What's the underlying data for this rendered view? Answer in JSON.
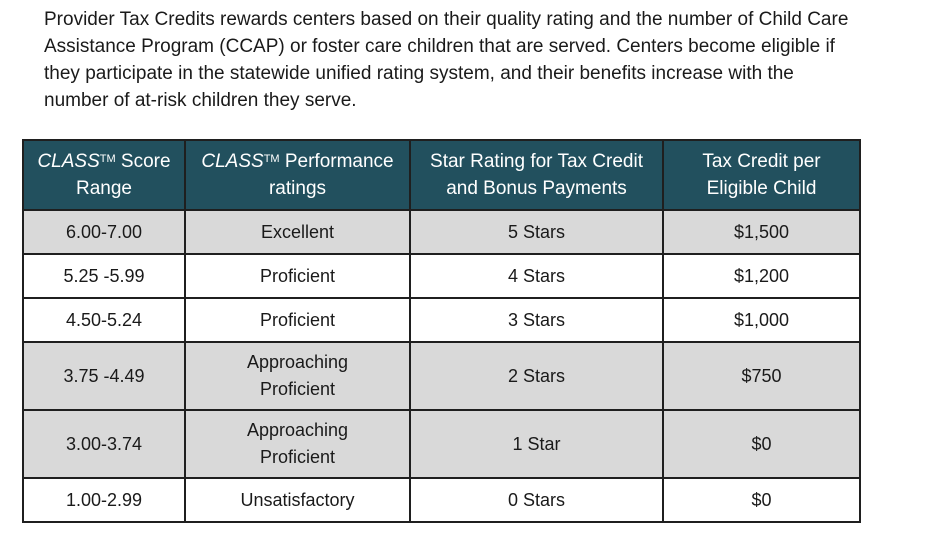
{
  "intro": {
    "line1": "Provider Tax Credits rewards centers based on their quality rating and the number of Child Care",
    "line2": "Assistance Program (CCAP) or foster care children that are served. Centers become eligible if",
    "line3": "they participate in the statewide unified rating system, and their benefits increase with the",
    "line4": "number of at-risk children they serve."
  },
  "table": {
    "headers": {
      "col1_a": "CLASS",
      "col1_sup": "TM",
      "col1_b": " Score",
      "col1_c": "Range",
      "col2_a": "CLASS",
      "col2_sup": "TM",
      "col2_b": " Performance",
      "col2_c": "ratings",
      "col3_a": "Star Rating for Tax Credit",
      "col3_b": "and Bonus Payments",
      "col4_a": "Tax Credit per",
      "col4_b": "Eligible Child"
    },
    "rows": [
      {
        "range": "6.00-7.00",
        "rating_a": "Excellent",
        "rating_b": "",
        "stars": "5 Stars",
        "credit": "$1,500"
      },
      {
        "range": "5.25 -5.99",
        "rating_a": "Proficient",
        "rating_b": "",
        "stars": "4 Stars",
        "credit": "$1,200"
      },
      {
        "range": "4.50-5.24",
        "rating_a": "Proficient",
        "rating_b": "",
        "stars": "3 Stars",
        "credit": "$1,000"
      },
      {
        "range": "3.75 -4.49",
        "rating_a": "Approaching",
        "rating_b": "Proficient",
        "stars": "2 Stars",
        "credit": "$750"
      },
      {
        "range": "3.00-3.74",
        "rating_a": "Approaching",
        "rating_b": "Proficient",
        "stars": "1 Star",
        "credit": "$0"
      },
      {
        "range": "1.00-2.99",
        "rating_a": "Unsatisfactory",
        "rating_b": "",
        "stars": "0 Stars",
        "credit": "$0"
      }
    ]
  },
  "colors": {
    "header_bg": "#22505e",
    "shaded_row": "#d9d9d9",
    "border": "#1f1f1f"
  }
}
